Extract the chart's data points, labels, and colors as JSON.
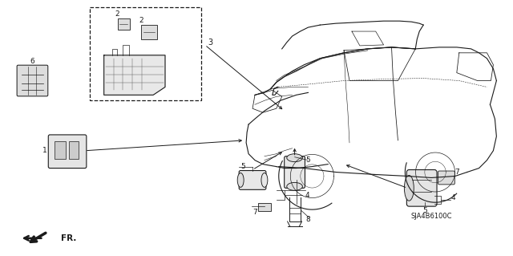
{
  "bg_color": "#ffffff",
  "line_color": "#1a1a1a",
  "fig_width": 6.4,
  "fig_height": 3.19,
  "dpi": 100,
  "note_text": "SJA4B6100C",
  "fr_text": "FR."
}
